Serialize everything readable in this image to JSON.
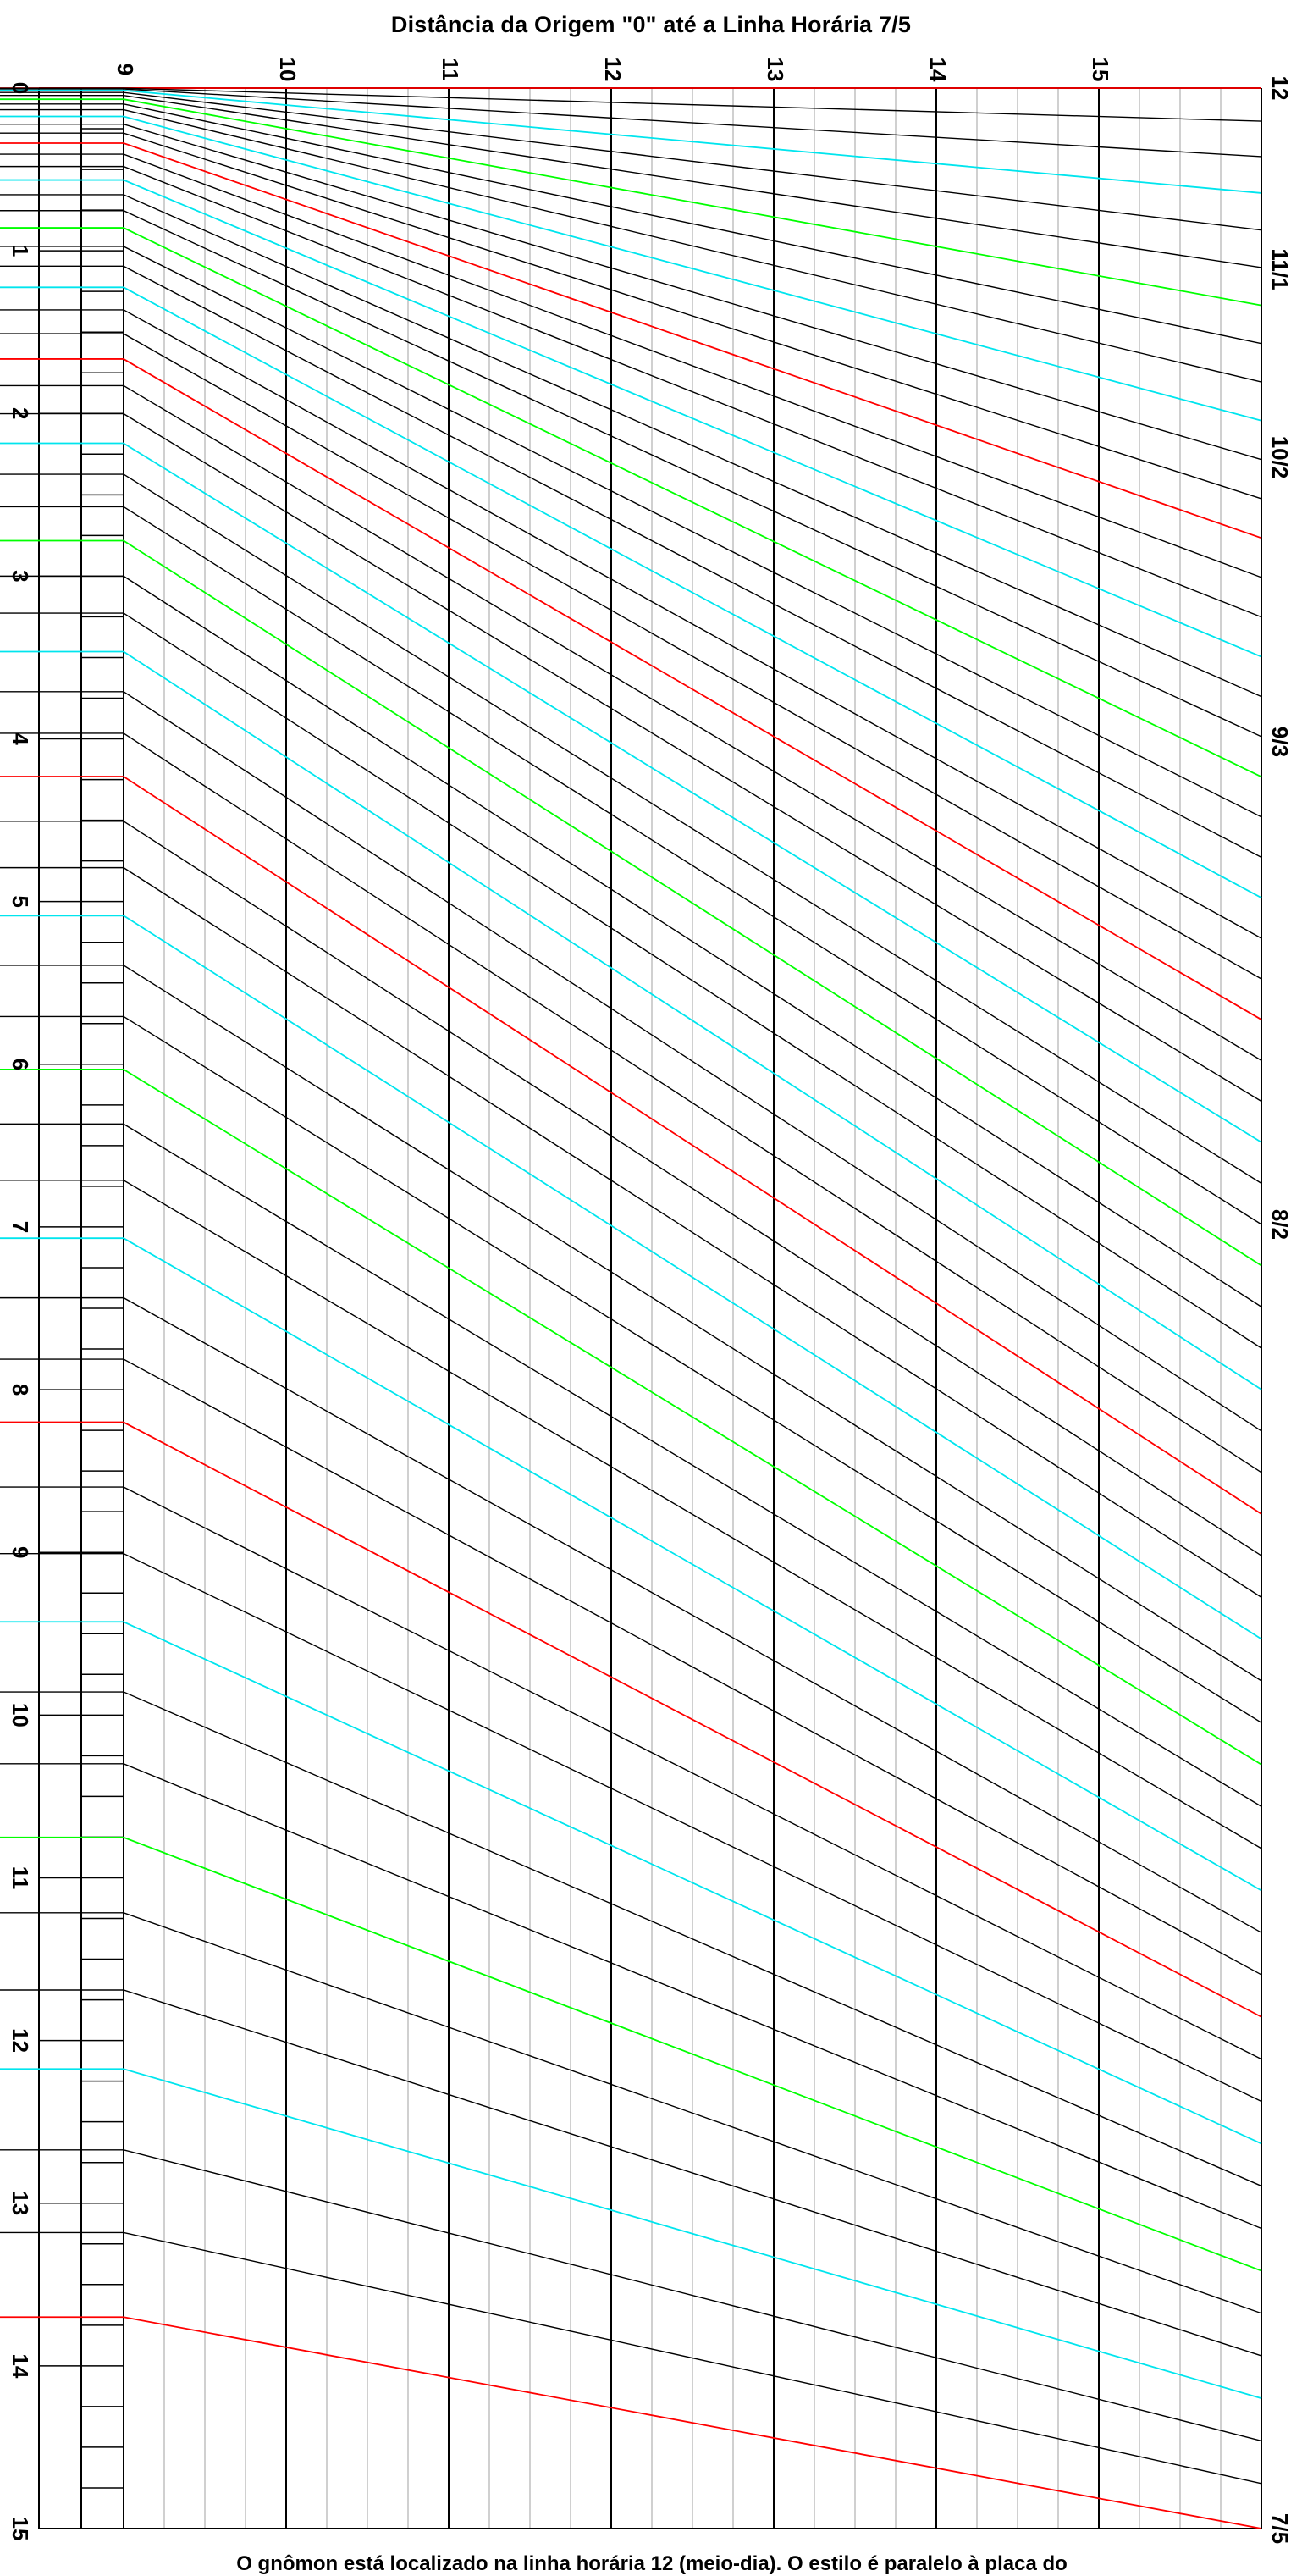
{
  "title": "Distância da Origem \"0\" até a Linha Horária 7/5",
  "caption": "O gnômon está localizado na linha horária 12 (meio-dia). O estilo é paralelo à placa do",
  "left_scale": {
    "labels": [
      "0",
      "1",
      "2",
      "3",
      "4",
      "5",
      "6",
      "7",
      "8",
      "9",
      "10",
      "11",
      "12",
      "13",
      "14",
      "15"
    ]
  },
  "top_scale": {
    "labels": [
      "9",
      "10",
      "11",
      "12",
      "13",
      "14",
      "15"
    ]
  },
  "right_labels": [
    "12",
    "11/1",
    "10/2",
    "9/3",
    "8/2",
    "7/5"
  ],
  "line_colors": {
    "hour": "#ff0000",
    "half_hour": "#00ff00",
    "quarter": "#00e5ee",
    "minor": "#000000",
    "grid": "#a0a0a0"
  }
}
